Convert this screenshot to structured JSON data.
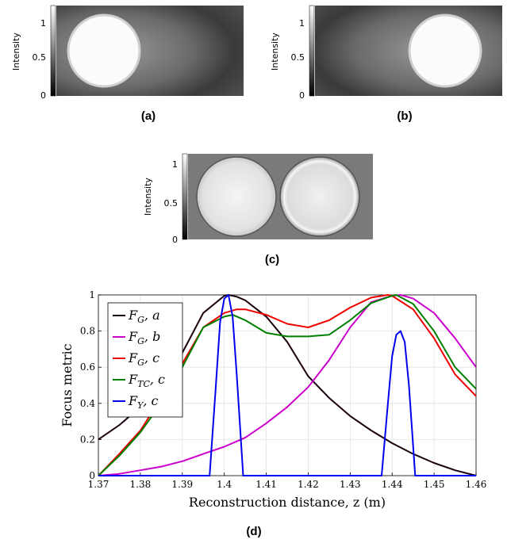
{
  "panels": {
    "a": {
      "label": "(a)",
      "colorbar": {
        "title": "Intensity",
        "ticks": [
          "1",
          "0.5",
          "0"
        ]
      }
    },
    "b": {
      "label": "(b)",
      "colorbar": {
        "title": "Intensity",
        "ticks": [
          "1",
          "0.5",
          "0"
        ]
      }
    },
    "c": {
      "label": "(c)",
      "colorbar": {
        "title": "Intensity",
        "ticks": [
          "1",
          "0.5",
          "0"
        ]
      }
    },
    "d": {
      "label": "(d)"
    }
  },
  "chart_data": {
    "type": "line",
    "xlabel": "Reconstruction distance, z (m)",
    "ylabel": "Focus metric",
    "xlim": [
      1.37,
      1.46
    ],
    "ylim": [
      0,
      1
    ],
    "xticks": [
      "1.37",
      "1.38",
      "1.39",
      "1.4",
      "1.41",
      "1.42",
      "1.43",
      "1.44",
      "1.45",
      "1.46"
    ],
    "yticks": [
      "0",
      "0.2",
      "0.4",
      "0.6",
      "0.8",
      "1"
    ],
    "grid": true,
    "legend_position": "top-left",
    "series": [
      {
        "name": "F_G, a",
        "name_base": "F",
        "name_sub": "G",
        "name_suffix": ", a",
        "color": "#1a0010",
        "x": [
          1.37,
          1.375,
          1.38,
          1.385,
          1.39,
          1.395,
          1.4,
          1.401,
          1.403,
          1.405,
          1.41,
          1.415,
          1.42,
          1.425,
          1.43,
          1.435,
          1.44,
          1.445,
          1.45,
          1.455,
          1.46
        ],
        "y": [
          0.2,
          0.28,
          0.38,
          0.5,
          0.68,
          0.9,
          0.995,
          1.0,
          0.99,
          0.97,
          0.88,
          0.74,
          0.55,
          0.43,
          0.33,
          0.25,
          0.18,
          0.12,
          0.07,
          0.03,
          0.0
        ]
      },
      {
        "name": "F_G, b",
        "name_base": "F",
        "name_sub": "G",
        "name_suffix": ", b",
        "color": "#cc00cc",
        "x": [
          1.37,
          1.375,
          1.38,
          1.385,
          1.39,
          1.395,
          1.4,
          1.405,
          1.41,
          1.415,
          1.42,
          1.425,
          1.43,
          1.435,
          1.44,
          1.442,
          1.445,
          1.45,
          1.455,
          1.46
        ],
        "y": [
          0.0,
          0.01,
          0.03,
          0.05,
          0.08,
          0.12,
          0.16,
          0.21,
          0.29,
          0.38,
          0.49,
          0.64,
          0.82,
          0.96,
          0.995,
          1.0,
          0.98,
          0.9,
          0.76,
          0.6
        ]
      },
      {
        "name": "F_G, c",
        "name_base": "F",
        "name_sub": "G",
        "name_suffix": ", c",
        "color": "#ee0000",
        "x": [
          1.37,
          1.375,
          1.38,
          1.385,
          1.39,
          1.395,
          1.4,
          1.403,
          1.405,
          1.41,
          1.415,
          1.42,
          1.425,
          1.43,
          1.435,
          1.439,
          1.44,
          1.445,
          1.45,
          1.455,
          1.46
        ],
        "y": [
          0.0,
          0.12,
          0.25,
          0.43,
          0.62,
          0.82,
          0.9,
          0.92,
          0.92,
          0.89,
          0.84,
          0.82,
          0.86,
          0.93,
          0.985,
          1.0,
          0.995,
          0.92,
          0.76,
          0.56,
          0.44
        ]
      },
      {
        "name": "F_TC, c",
        "name_base": "F",
        "name_sub": "TC",
        "name_suffix": ", c",
        "color": "#008000",
        "x": [
          1.37,
          1.375,
          1.38,
          1.385,
          1.39,
          1.395,
          1.4,
          1.402,
          1.405,
          1.41,
          1.415,
          1.42,
          1.425,
          1.43,
          1.435,
          1.44,
          1.441,
          1.445,
          1.45,
          1.455,
          1.46
        ],
        "y": [
          0.0,
          0.11,
          0.24,
          0.4,
          0.6,
          0.82,
          0.88,
          0.89,
          0.86,
          0.79,
          0.77,
          0.77,
          0.78,
          0.86,
          0.955,
          0.995,
          1.0,
          0.95,
          0.8,
          0.6,
          0.48
        ]
      },
      {
        "name": "F_Y, c",
        "name_base": "F",
        "name_sub": "Y",
        "name_suffix": ", c",
        "color": "#0000ee",
        "x": [
          1.37,
          1.3965,
          1.398,
          1.399,
          1.4,
          1.401,
          1.402,
          1.403,
          1.4045,
          1.4375,
          1.439,
          1.44,
          1.441,
          1.442,
          1.443,
          1.444,
          1.4455,
          1.46
        ],
        "y": [
          0.0,
          0.0,
          0.5,
          0.85,
          0.98,
          1.0,
          0.88,
          0.55,
          0.0,
          0.0,
          0.4,
          0.66,
          0.78,
          0.8,
          0.74,
          0.5,
          0.0,
          0.0
        ]
      }
    ]
  }
}
